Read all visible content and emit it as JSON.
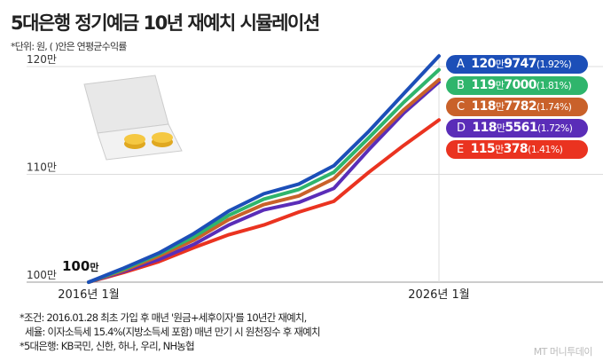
{
  "title": "5대은행 정기예금 10년 재예치 시뮬레이션",
  "unit_note": "*단위: 원, ( )안은 연평균수익률",
  "notes": [
    "*조건: 2016.01.28 최초 가입 후 매년 '원금+세후이자'를 10년간 재예치,",
    "세율: 이자소득세 15.4%(지방소득세 포함) 매년 만기 시 원천징수 후 재예치",
    "*5대은행: KB국민, 신한, 하나, 우리, NH농협"
  ],
  "logo": "MT 머니투데이",
  "chart_data": {
    "type": "line",
    "x": [
      2016,
      2017,
      2018,
      2019,
      2020,
      2021,
      2022,
      2023,
      2024,
      2025,
      2026
    ],
    "x_tick_labels": [
      "2016년 1월",
      "2026년 1월"
    ],
    "y_tick_labels": [
      "100만",
      "110만",
      "120만"
    ],
    "ylim": [
      100,
      121
    ],
    "y_unit": "만원",
    "start_label_big": "100",
    "start_label_small": "만",
    "grid": "horizontal",
    "series": [
      {
        "name": "A",
        "color": "#1c4fb8",
        "values": [
          100,
          101.3,
          102.7,
          104.5,
          106.6,
          108.2,
          109.1,
          110.8,
          114.0,
          117.5,
          120.9747
        ],
        "label_main": "120",
        "label_man": "만",
        "label_rest": "9747",
        "rate": "(1.92%)"
      },
      {
        "name": "B",
        "color": "#2fb56c",
        "values": [
          100,
          101.2,
          102.6,
          104.2,
          106.2,
          107.7,
          108.6,
          110.2,
          113.4,
          116.7,
          119.7
        ],
        "label_main": "119",
        "label_man": "만",
        "label_rest": "7000",
        "rate": "(1.81%)"
      },
      {
        "name": "C",
        "color": "#c9612a",
        "values": [
          100,
          101.1,
          102.4,
          103.9,
          105.8,
          107.2,
          108.0,
          109.6,
          112.8,
          116.0,
          118.7782
        ],
        "label_main": "118",
        "label_man": "만",
        "label_rest": "7782",
        "rate": "(1.74%)"
      },
      {
        "name": "D",
        "color": "#5a2db8",
        "values": [
          100,
          101.0,
          102.1,
          103.5,
          105.3,
          106.7,
          107.4,
          108.7,
          112.3,
          115.7,
          118.5561
        ],
        "label_main": "118",
        "label_man": "만",
        "label_rest": "5561",
        "rate": "(1.72%)"
      },
      {
        "name": "E",
        "color": "#ea3320",
        "values": [
          100,
          100.9,
          101.9,
          103.2,
          104.4,
          105.3,
          106.5,
          107.5,
          110.2,
          112.7,
          115.0378
        ],
        "label_main": "115",
        "label_man": "만",
        "label_rest": "378",
        "rate": "(1.41%)"
      }
    ]
  }
}
